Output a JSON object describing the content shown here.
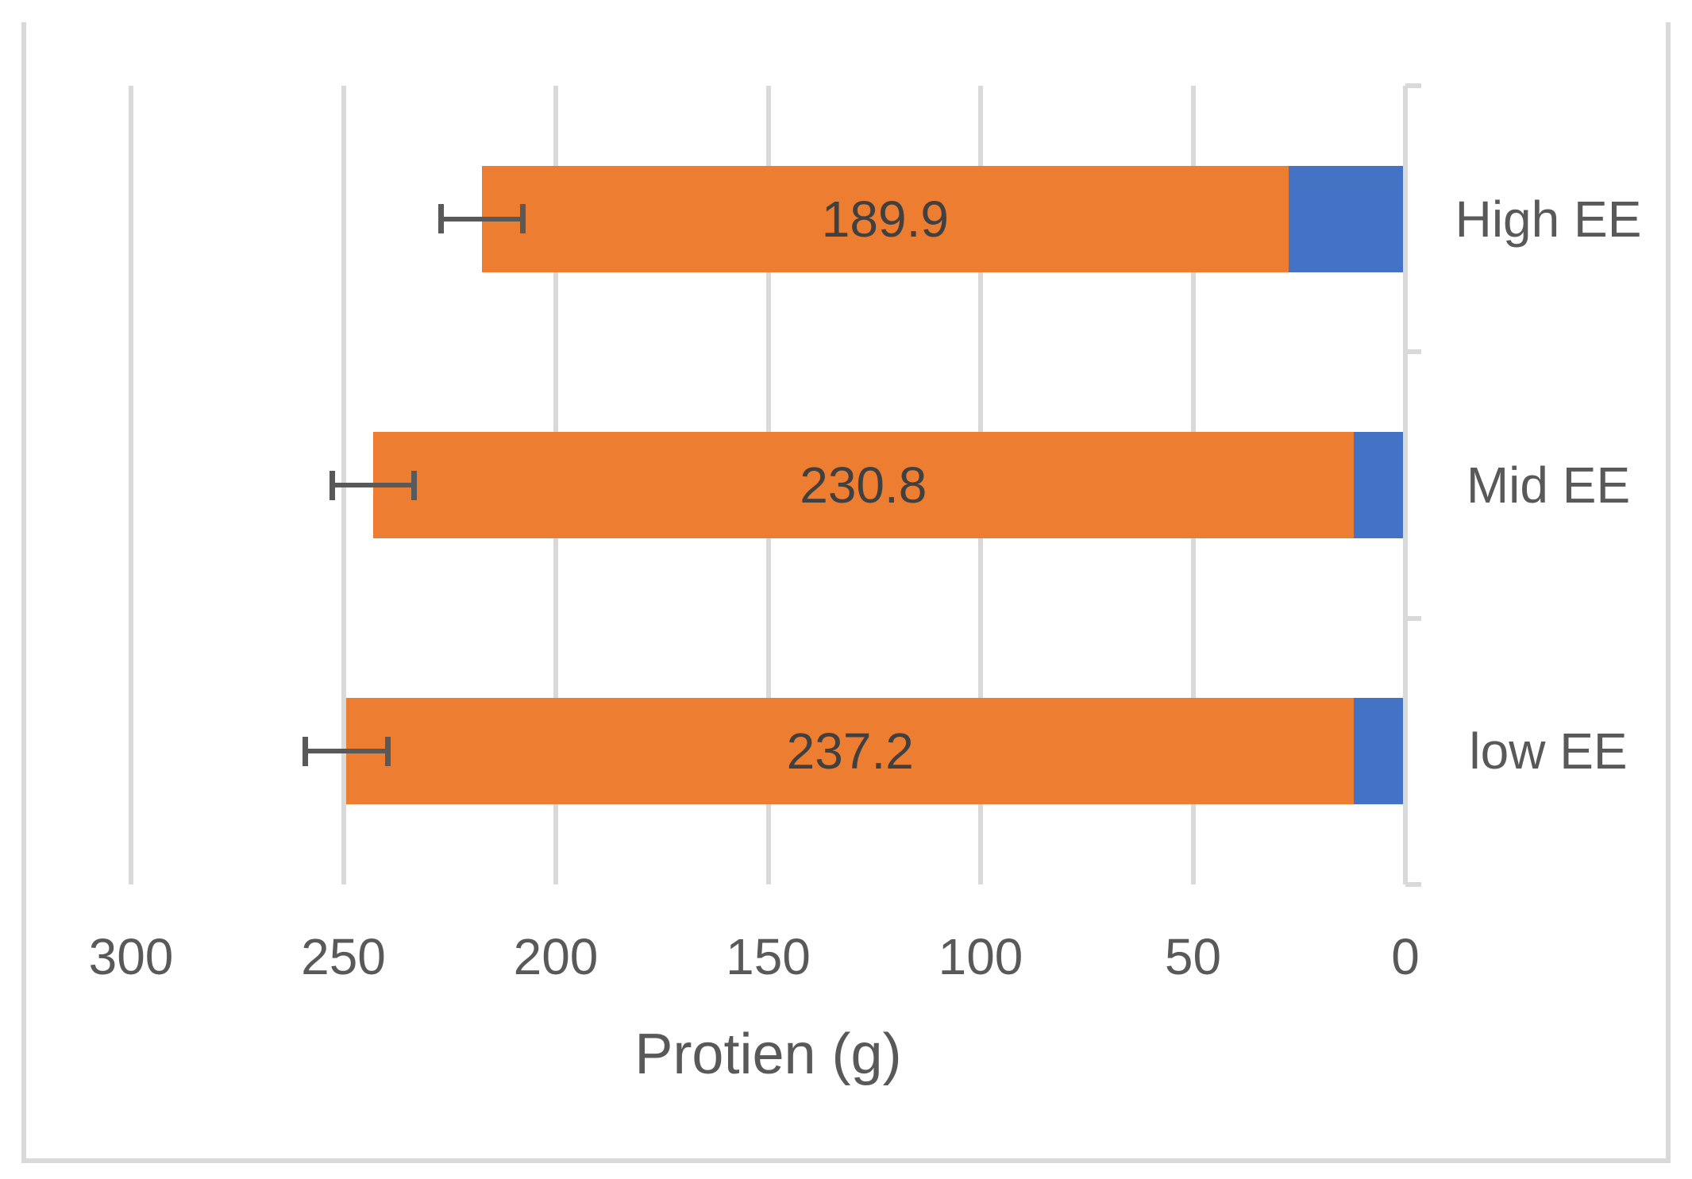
{
  "chart_data": {
    "type": "bar",
    "orientation": "horizontal",
    "stacked": true,
    "xlabel": "Protien (g)",
    "x_ticks": [
      "300",
      "250",
      "200",
      "150",
      "100",
      "50",
      "0"
    ],
    "x_range": [
      0,
      300
    ],
    "axis_reversed": true,
    "grid": true,
    "legend": false,
    "categories": [
      "High EE",
      "Mid EE",
      "low EE"
    ],
    "series": [
      {
        "id": "blue-segment",
        "color": "#4472C4",
        "values": [
          27.5,
          12.2,
          12.1
        ]
      },
      {
        "id": "orange-segment",
        "color": "#ED7D31",
        "values": [
          189.9,
          230.8,
          237.2
        ],
        "data_labels": [
          "189.9",
          "230.8",
          "237.2"
        ]
      }
    ],
    "error_bar": {
      "plus_minus": 9.7,
      "color": "#595959"
    },
    "colors": {
      "background": "#FFFFFF",
      "chart_border": "#D9D9D9",
      "gridline": "#D9D9D9",
      "axis_line": "#D9D9D9",
      "tick_label": "#595959",
      "category_label": "#595959",
      "data_label": "#404040"
    }
  }
}
